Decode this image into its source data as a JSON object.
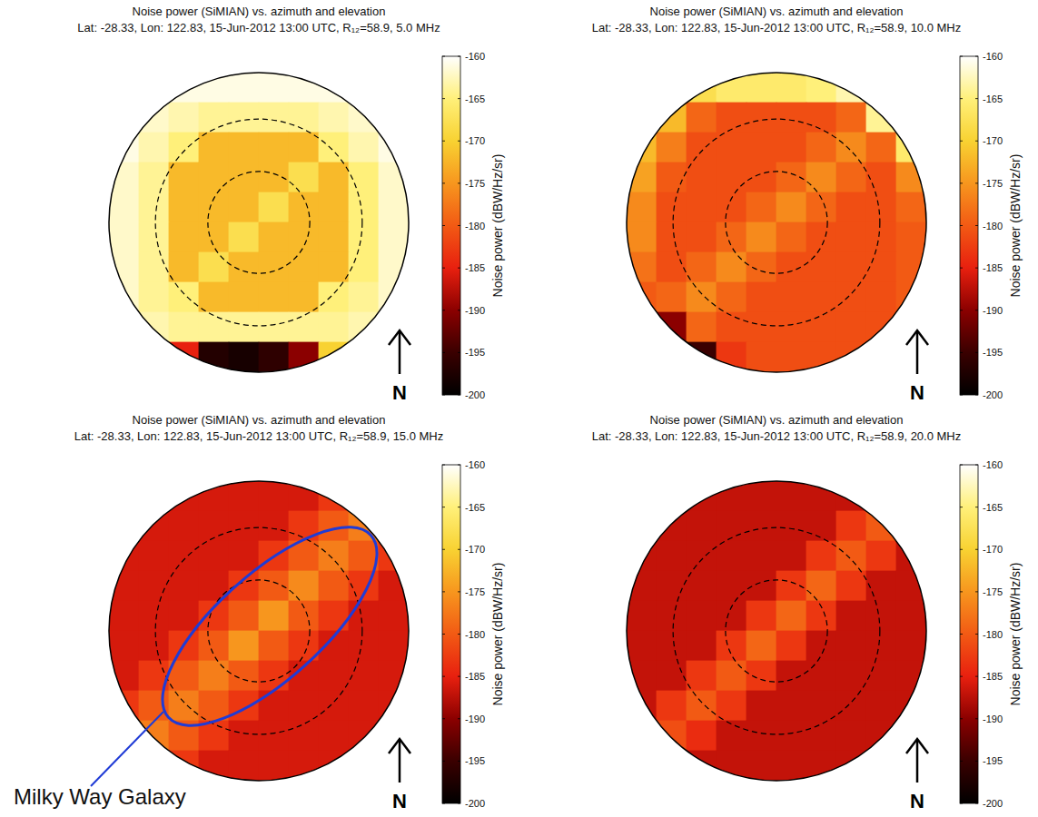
{
  "chart_data": [
    {
      "type": "heatmap",
      "title": "Noise power (SiMIAN) vs. azimuth and elevation",
      "subtitle": "Lat: -28.33, Lon: 122.83, 15-Jun-2012 13:00 UTC, R₁₂=58.9, 5.0 MHz",
      "colorbar_label": "Noise power (dBW/Hz/sr)",
      "colorbar_range": [
        -200,
        -160
      ],
      "colorbar_ticks": [
        -160,
        -165,
        -170,
        -175,
        -180,
        -185,
        -190,
        -195,
        -200
      ],
      "north_label": "N",
      "tick_labels": false,
      "annotations": [],
      "cells": [
        [
          -161,
          -161,
          -161,
          -161,
          -161,
          -161,
          -161,
          -161,
          -161,
          -161
        ],
        [
          -161,
          -162,
          -163,
          -164,
          -164,
          -164,
          -164,
          -163,
          -162,
          -161
        ],
        [
          -161,
          -163,
          -165,
          -172,
          -172,
          -172,
          -172,
          -165,
          -163,
          -161
        ],
        [
          -162,
          -164,
          -172,
          -172,
          -172,
          -172,
          -168,
          -172,
          -165,
          -162
        ],
        [
          -162,
          -164,
          -172,
          -172,
          -172,
          -168,
          -172,
          -172,
          -165,
          -162
        ],
        [
          -162,
          -164,
          -172,
          -172,
          -168,
          -172,
          -172,
          -172,
          -165,
          -162
        ],
        [
          -162,
          -164,
          -172,
          -168,
          -172,
          -172,
          -172,
          -172,
          -165,
          -162
        ],
        [
          -162,
          -164,
          -165,
          -172,
          -172,
          -172,
          -172,
          -165,
          -164,
          -162
        ],
        [
          -162,
          -163,
          -164,
          -164,
          -164,
          -164,
          -164,
          -164,
          -163,
          -162
        ],
        [
          -163,
          -168,
          -185,
          -197,
          -198,
          -196,
          -190,
          -170,
          -163,
          -162
        ]
      ]
    },
    {
      "type": "heatmap",
      "title": "Noise power (SiMIAN) vs. azimuth and elevation",
      "subtitle": "Lat: -28.33, Lon: 122.83, 15-Jun-2012 13:00 UTC, R₁₂=58.9, 10.0 MHz",
      "colorbar_label": "Noise power (dBW/Hz/sr)",
      "colorbar_range": [
        -200,
        -160
      ],
      "colorbar_ticks": [
        -160,
        -165,
        -170,
        -175,
        -180,
        -185,
        -190,
        -195,
        -200
      ],
      "north_label": "N",
      "tick_labels": false,
      "annotations": [],
      "cells": [
        [
          -170,
          -170,
          -168,
          -166,
          -166,
          -166,
          -165,
          -163,
          -162,
          -162
        ],
        [
          -170,
          -172,
          -179,
          -181,
          -181,
          -181,
          -181,
          -179,
          -164,
          -162
        ],
        [
          -172,
          -177,
          -181,
          -181,
          -181,
          -181,
          -179,
          -176,
          -179,
          -166
        ],
        [
          -174,
          -180,
          -181,
          -181,
          -181,
          -179,
          -176,
          -179,
          -181,
          -176
        ],
        [
          -176,
          -181,
          -181,
          -181,
          -179,
          -176,
          -179,
          -181,
          -181,
          -179
        ],
        [
          -176,
          -181,
          -181,
          -179,
          -176,
          -179,
          -181,
          -181,
          -181,
          -180
        ],
        [
          -178,
          -181,
          -179,
          -176,
          -179,
          -181,
          -181,
          -181,
          -181,
          -180
        ],
        [
          -180,
          -179,
          -176,
          -179,
          -181,
          -181,
          -181,
          -181,
          -181,
          -180
        ],
        [
          -186,
          -190,
          -179,
          -181,
          -181,
          -181,
          -181,
          -181,
          -181,
          -180
        ],
        [
          -195,
          -195,
          -195,
          -183,
          -181,
          -181,
          -181,
          -181,
          -181,
          -181
        ]
      ]
    },
    {
      "type": "heatmap",
      "title": "Noise power (SiMIAN) vs. azimuth and elevation",
      "subtitle": "Lat: -28.33, Lon: 122.83, 15-Jun-2012 13:00 UTC, R₁₂=58.9, 15.0 MHz",
      "colorbar_label": "Noise power (dBW/Hz/sr)",
      "colorbar_range": [
        -200,
        -160
      ],
      "colorbar_ticks": [
        -160,
        -165,
        -170,
        -175,
        -180,
        -185,
        -190,
        -195,
        -200
      ],
      "north_label": "N",
      "tick_labels": false,
      "annotations": [
        "Milky Way Galaxy"
      ],
      "cells": [
        [
          -186,
          -186,
          -186,
          -186,
          -186,
          -186,
          -186,
          -183,
          -180,
          -177
        ],
        [
          -186,
          -186,
          -186,
          -186,
          -186,
          -186,
          -183,
          -180,
          -177,
          -180
        ],
        [
          -186,
          -186,
          -186,
          -186,
          -186,
          -183,
          -180,
          -177,
          -180,
          -183
        ],
        [
          -186,
          -186,
          -186,
          -186,
          -183,
          -180,
          -176,
          -180,
          -183,
          -186
        ],
        [
          -186,
          -186,
          -186,
          -183,
          -180,
          -175,
          -180,
          -183,
          -186,
          -186
        ],
        [
          -186,
          -186,
          -183,
          -180,
          -175,
          -180,
          -183,
          -186,
          -186,
          -186
        ],
        [
          -186,
          -183,
          -180,
          -177,
          -180,
          -183,
          -186,
          -186,
          -186,
          -186
        ],
        [
          -183,
          -180,
          -177,
          -180,
          -183,
          -186,
          -186,
          -186,
          -186,
          -186
        ],
        [
          -180,
          -177,
          -180,
          -183,
          -186,
          -186,
          -186,
          -186,
          -186,
          -186
        ],
        [
          -177,
          -180,
          -183,
          -186,
          -186,
          -186,
          -186,
          -186,
          -186,
          -186
        ]
      ]
    },
    {
      "type": "heatmap",
      "title": "Noise power (SiMIAN) vs. azimuth and elevation",
      "subtitle": "Lat: -28.33, Lon: 122.83, 15-Jun-2012 13:00 UTC, R₁₂=58.9, 20.0 MHz",
      "colorbar_label": "Noise power (dBW/Hz/sr)",
      "colorbar_range": [
        -200,
        -160
      ],
      "colorbar_ticks": [
        -160,
        -165,
        -170,
        -175,
        -180,
        -185,
        -190,
        -195,
        -200
      ],
      "north_label": "N",
      "tick_labels": false,
      "annotations": [],
      "cells": [
        [
          -187,
          -187,
          -187,
          -187,
          -187,
          -187,
          -187,
          -187,
          -183,
          -181
        ],
        [
          -187,
          -187,
          -187,
          -187,
          -187,
          -187,
          -187,
          -183,
          -180,
          -183
        ],
        [
          -187,
          -187,
          -187,
          -187,
          -187,
          -187,
          -183,
          -180,
          -183,
          -187
        ],
        [
          -187,
          -187,
          -187,
          -187,
          -187,
          -183,
          -179,
          -183,
          -187,
          -187
        ],
        [
          -187,
          -187,
          -187,
          -187,
          -183,
          -179,
          -183,
          -187,
          -187,
          -187
        ],
        [
          -187,
          -187,
          -187,
          -183,
          -179,
          -183,
          -187,
          -187,
          -187,
          -187
        ],
        [
          -187,
          -187,
          -183,
          -180,
          -183,
          -187,
          -187,
          -187,
          -187,
          -187
        ],
        [
          -187,
          -183,
          -180,
          -183,
          -187,
          -187,
          -187,
          -187,
          -187,
          -187
        ],
        [
          -186,
          -181,
          -184,
          -187,
          -187,
          -187,
          -187,
          -187,
          -187,
          -187
        ],
        [
          -184,
          -186,
          -187,
          -187,
          -187,
          -187,
          -187,
          -187,
          -187,
          -187
        ]
      ]
    }
  ]
}
